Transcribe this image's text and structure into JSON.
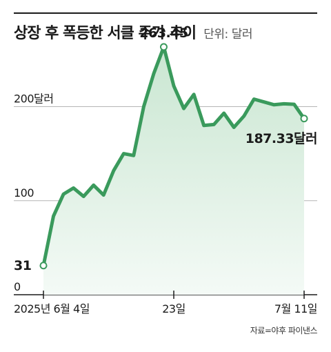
{
  "header": {
    "title": "상장 후 폭등한 서클 주가 추이",
    "unit_label": "단위: 달러"
  },
  "source": "자료=야후 파이낸스",
  "colors": {
    "line": "#3a9a5c",
    "fill_top": "#c9e6d1",
    "fill_bottom": "#f4faf6",
    "grid": "#b5b5b5",
    "text": "#1a1a1a"
  },
  "chart_data": {
    "type": "area",
    "title": "상장 후 폭등한 서클 주가 추이",
    "ylabel": "",
    "xlabel": "",
    "ylim": [
      0,
      280
    ],
    "y_ticks": [
      {
        "value": 0,
        "label": "0"
      },
      {
        "value": 100,
        "label": "100"
      },
      {
        "value": 200,
        "label": "200달러"
      }
    ],
    "x_ticks": [
      {
        "index": 0,
        "label": "2025년 6월 4일"
      },
      {
        "index": 13,
        "label": "23일"
      },
      {
        "index": 26,
        "label": "7월 11일"
      }
    ],
    "values": [
      31,
      83.5,
      107,
      113.5,
      104.5,
      116.5,
      106,
      132,
      150,
      148,
      200,
      235,
      263.45,
      222,
      198,
      213,
      180,
      181,
      193,
      178,
      190,
      208,
      205,
      202,
      203,
      202.5,
      187.33
    ],
    "annotations": [
      {
        "index": 0,
        "label": "31"
      },
      {
        "index": 12,
        "label": "263.45"
      },
      {
        "index": 26,
        "label": "187.33달러"
      }
    ],
    "grid": true
  }
}
